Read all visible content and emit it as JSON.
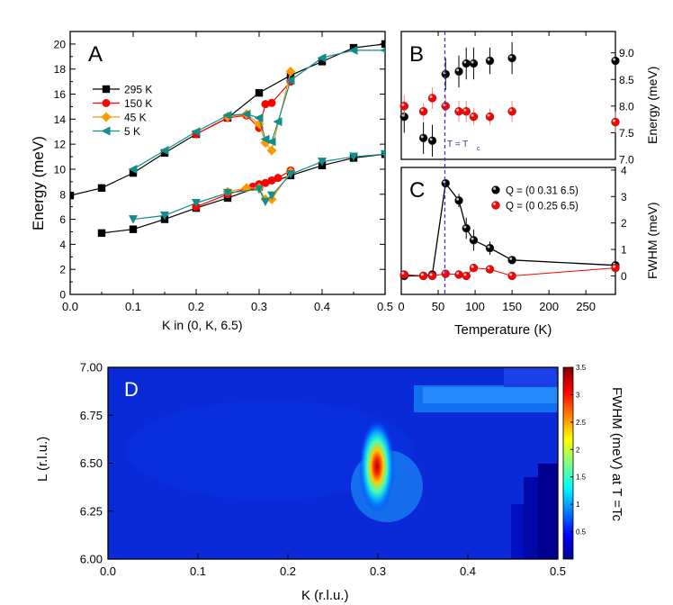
{
  "colors": {
    "black": "#000000",
    "red": "#ff0000",
    "orange": "#ff9900",
    "teal": "#138c8c",
    "blue_line": "#3333cc"
  },
  "chart_data": [
    {
      "id": "A",
      "type": "line",
      "panel_label": "A",
      "xlabel": "K in (0, K, 6.5)",
      "ylabel": "Energy (meV)",
      "xlim": [
        0.0,
        0.5
      ],
      "ylim": [
        0,
        21
      ],
      "xticks": [
        "0.0",
        "0.1",
        "0.2",
        "0.3",
        "0.4",
        "0.5"
      ],
      "yticks": [
        "0",
        "2",
        "4",
        "6",
        "8",
        "10",
        "12",
        "14",
        "16",
        "18",
        "20"
      ],
      "legend_position": "upper-left",
      "series": [
        {
          "name": "295 K",
          "color": "#000000",
          "marker": "square",
          "branches": [
            {
              "x": [
                0.0,
                0.05,
                0.1,
                0.15,
                0.2,
                0.25,
                0.3,
                0.35,
                0.4,
                0.45,
                0.5
              ],
              "y": [
                7.9,
                8.5,
                9.7,
                11.3,
                12.8,
                14.1,
                16.1,
                17.5,
                18.6,
                19.7,
                20.0
              ]
            },
            {
              "x": [
                0.05,
                0.1,
                0.15,
                0.2,
                0.25,
                0.3,
                0.35,
                0.4,
                0.45,
                0.5
              ],
              "y": [
                4.9,
                5.2,
                6.0,
                6.9,
                7.7,
                8.6,
                9.5,
                10.3,
                10.9,
                11.2
              ]
            }
          ]
        },
        {
          "name": "150 K",
          "color": "#ff0000",
          "marker": "circle",
          "branches": [
            {
              "x": [
                0.2,
                0.25,
                0.28,
                0.3,
                0.31,
                0.32,
                0.35
              ],
              "y": [
                12.8,
                14.1,
                14.3,
                13.3,
                15.2,
                15.3,
                17.0
              ]
            },
            {
              "x": [
                0.2,
                0.25,
                0.29,
                0.3,
                0.31,
                0.32,
                0.33,
                0.35
              ],
              "y": [
                7.0,
                8.0,
                8.6,
                8.8,
                8.9,
                9.1,
                9.3,
                9.9
              ]
            }
          ]
        },
        {
          "name": "45 K",
          "color": "#ff9900",
          "marker": "diamond",
          "branches": [
            {
              "x": [
                0.25,
                0.28,
                0.3,
                0.31,
                0.32,
                0.35
              ],
              "y": [
                14.2,
                14.4,
                13.6,
                12.1,
                11.5,
                17.8
              ]
            },
            {
              "x": [
                0.25,
                0.28,
                0.3,
                0.31,
                0.32,
                0.35
              ],
              "y": [
                8.2,
                8.5,
                8.5,
                7.6,
                7.6,
                9.8
              ]
            }
          ]
        },
        {
          "name": "5 K",
          "color": "#138c8c",
          "marker": "triangle-left",
          "branches": [
            {
              "x": [
                0.1,
                0.15,
                0.2,
                0.25,
                0.28,
                0.3,
                0.31,
                0.32,
                0.33,
                0.35,
                0.4,
                0.45,
                0.5
              ],
              "y": [
                10.0,
                11.5,
                13.0,
                14.3,
                14.4,
                14.1,
                12.4,
                12.2,
                13.8,
                17.1,
                18.9,
                19.5,
                19.5
              ]
            },
            {
              "x": [
                0.1,
                0.15,
                0.2,
                0.25,
                0.3,
                0.31,
                0.32,
                0.35,
                0.4,
                0.45,
                0.5
              ],
              "y": [
                6.0,
                6.3,
                7.3,
                8.1,
                8.4,
                7.4,
                7.9,
                9.6,
                10.6,
                11.0,
                11.2
              ]
            }
          ]
        }
      ]
    },
    {
      "id": "B",
      "type": "scatter",
      "panel_label": "B",
      "ylabel": "Energy (meV)",
      "xlim": [
        0,
        290
      ],
      "ylim": [
        7.0,
        9.4
      ],
      "yticks": [
        "7.0",
        "7.5",
        "8.0",
        "8.5",
        "9.0"
      ],
      "annotation": "T = T",
      "annotation_sub": "c",
      "vline_x": 59,
      "series": [
        {
          "color": "#000000",
          "x": [
            4,
            30,
            42,
            60,
            78,
            88,
            98,
            120,
            150,
            290
          ],
          "y": [
            7.8,
            7.4,
            7.35,
            8.6,
            8.65,
            8.8,
            8.8,
            8.85,
            8.9,
            8.85
          ],
          "err": [
            0.3,
            0.3,
            0.3,
            0.3,
            0.3,
            0.3,
            0.3,
            0.25,
            0.3,
            0.3
          ]
        },
        {
          "color": "#ff0000",
          "x": [
            4,
            30,
            42,
            60,
            78,
            88,
            98,
            120,
            150,
            290
          ],
          "y": [
            8.0,
            7.9,
            8.15,
            8.0,
            7.9,
            7.9,
            7.8,
            7.8,
            7.9,
            7.7
          ],
          "err": [
            0.2,
            0.15,
            0.2,
            0.2,
            0.2,
            0.2,
            0.15,
            0.15,
            0.2,
            0.2
          ]
        }
      ]
    },
    {
      "id": "C",
      "type": "line",
      "panel_label": "C",
      "xlabel": "Temperature (K)",
      "ylabel": "FWHM (meV)",
      "xlim": [
        0,
        290
      ],
      "ylim": [
        -0.7,
        4.1
      ],
      "xticks": [
        "0",
        "50",
        "100",
        "150",
        "200",
        "250"
      ],
      "yticks": [
        "0",
        "1",
        "2",
        "3",
        "4"
      ],
      "legend_position": "upper-right",
      "series": [
        {
          "name": "Q = (0 0.31 6.5)",
          "color": "#000000",
          "x": [
            4,
            30,
            42,
            60,
            78,
            88,
            98,
            120,
            150,
            290
          ],
          "y": [
            0.0,
            0.0,
            0.05,
            3.5,
            2.85,
            1.8,
            1.35,
            1.05,
            0.6,
            0.4
          ],
          "err": [
            0.0,
            0.0,
            0.0,
            0.0,
            0.25,
            0.4,
            0.4,
            0.25,
            0.0,
            0.15
          ]
        },
        {
          "name": "Q = (0 0.25 6.5)",
          "color": "#ff0000",
          "x": [
            4,
            30,
            42,
            60,
            78,
            88,
            98,
            120,
            150,
            290
          ],
          "y": [
            0.05,
            0.0,
            0.0,
            0.08,
            0.05,
            0.0,
            0.3,
            0.25,
            0.0,
            0.3
          ],
          "err": [
            0.0,
            0.0,
            0.0,
            0.0,
            0.0,
            0.0,
            0.0,
            0.0,
            0.0,
            0.0
          ]
        }
      ]
    },
    {
      "id": "D",
      "type": "heatmap",
      "panel_label": "D",
      "xlabel": "K (r.l.u.)",
      "ylabel": "L (r.l.u.)",
      "xlim": [
        0.0,
        0.5
      ],
      "ylim": [
        6.0,
        7.0
      ],
      "xticks": [
        "0.0",
        "0.1",
        "0.2",
        "0.3",
        "0.4",
        "0.5"
      ],
      "yticks": [
        "6.00",
        "6.25",
        "6.50",
        "6.75",
        "7.00"
      ],
      "colorbar_label": "FWHM (meV) at T =Tc",
      "colorbar_range": [
        0,
        3.5
      ],
      "colorbar_ticks": [
        "0.5",
        "1",
        "1.5",
        "2",
        "2.5",
        "3",
        "3.5"
      ],
      "peak": {
        "K": 0.3,
        "L": 6.49,
        "value": 3.3
      }
    }
  ]
}
